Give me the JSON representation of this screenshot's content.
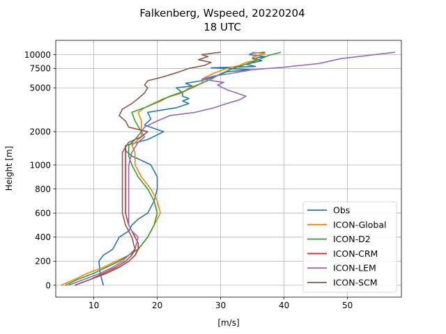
{
  "chart_data": {
    "type": "line",
    "title": "Falkenberg, Wspeed, 20220204",
    "subtitle": "18 UTC",
    "xlabel": "[m/s]",
    "ylabel": "Height [m]",
    "xlim": [
      4.0,
      58.5
    ],
    "x_ticks": [
      10,
      20,
      30,
      40,
      50
    ],
    "y_ticks": [
      0,
      200,
      400,
      600,
      800,
      1000,
      2000,
      5000,
      7500,
      10000
    ],
    "y_scale": "piecewise: linear 0-1000 m, logarithmic 1000-10000 m",
    "grid": true,
    "legend_position": "lower right",
    "series": [
      {
        "name": "Obs",
        "color": "#1f77b4",
        "points": [
          [
            11.5,
            0
          ],
          [
            11,
            100
          ],
          [
            10.8,
            200
          ],
          [
            11.5,
            250
          ],
          [
            13,
            300
          ],
          [
            14,
            400
          ],
          [
            15.5,
            450
          ],
          [
            16,
            500
          ],
          [
            17,
            550
          ],
          [
            18.5,
            600
          ],
          [
            19.5,
            700
          ],
          [
            20,
            800
          ],
          [
            20,
            900
          ],
          [
            19,
            1000
          ],
          [
            17.5,
            1100
          ],
          [
            16,
            1200
          ],
          [
            15,
            1350
          ],
          [
            15,
            1500
          ],
          [
            18.5,
            1700
          ],
          [
            21,
            2000
          ],
          [
            18,
            2300
          ],
          [
            19,
            2600
          ],
          [
            18.5,
            3000
          ],
          [
            23,
            3300
          ],
          [
            25,
            3600
          ],
          [
            24,
            3800
          ],
          [
            25,
            4000
          ],
          [
            24,
            4200
          ],
          [
            24,
            4500
          ],
          [
            23,
            5000
          ],
          [
            25.5,
            5200
          ],
          [
            24.5,
            5500
          ],
          [
            27,
            5800
          ],
          [
            29,
            6300
          ],
          [
            31,
            7000
          ],
          [
            35,
            7300
          ],
          [
            28.5,
            7600
          ],
          [
            35.5,
            7800
          ],
          [
            34,
            8200
          ],
          [
            36.5,
            8800
          ],
          [
            35,
            9200
          ],
          [
            37,
            9600
          ],
          [
            34.5,
            10000
          ],
          [
            35,
            10300
          ],
          [
            37,
            10500
          ]
        ]
      },
      {
        "name": "ICON-Global",
        "color": "#ff7f0e",
        "points": [
          [
            4.8,
            0
          ],
          [
            7,
            50
          ],
          [
            9,
            100
          ],
          [
            11.5,
            150
          ],
          [
            13.5,
            200
          ],
          [
            15.5,
            250
          ],
          [
            17,
            300
          ],
          [
            18.5,
            400
          ],
          [
            19.5,
            500
          ],
          [
            20.5,
            600
          ],
          [
            20,
            700
          ],
          [
            19,
            800
          ],
          [
            17.5,
            900
          ],
          [
            16.5,
            1000
          ],
          [
            16.5,
            1300
          ],
          [
            16,
            1500
          ],
          [
            17.5,
            1800
          ],
          [
            17.5,
            2200
          ],
          [
            17.5,
            2500
          ],
          [
            17,
            3000
          ],
          [
            18,
            3300
          ],
          [
            21,
            4000
          ],
          [
            24,
            4500
          ],
          [
            25,
            5000
          ],
          [
            27,
            5500
          ],
          [
            27.5,
            6200
          ],
          [
            29,
            6800
          ],
          [
            31,
            7500
          ],
          [
            33,
            8000
          ],
          [
            34,
            8500
          ],
          [
            36,
            9000
          ],
          [
            35,
            9500
          ],
          [
            37,
            10200
          ],
          [
            35,
            10500
          ]
        ]
      },
      {
        "name": "ICON-D2",
        "color": "#2ca02c",
        "points": [
          [
            5.5,
            0
          ],
          [
            7.5,
            50
          ],
          [
            10,
            100
          ],
          [
            12,
            150
          ],
          [
            14,
            200
          ],
          [
            15.5,
            250
          ],
          [
            17,
            300
          ],
          [
            18.5,
            400
          ],
          [
            19.5,
            500
          ],
          [
            20,
            600
          ],
          [
            19.5,
            700
          ],
          [
            18.5,
            800
          ],
          [
            17,
            900
          ],
          [
            16,
            1000
          ],
          [
            15.5,
            1200
          ],
          [
            15.5,
            1500
          ],
          [
            16.5,
            1700
          ],
          [
            17.5,
            2000
          ],
          [
            16.5,
            2500
          ],
          [
            16,
            3000
          ],
          [
            18,
            3300
          ],
          [
            20.5,
            3800
          ],
          [
            22,
            4200
          ],
          [
            24,
            4600
          ],
          [
            25.5,
            5000
          ],
          [
            27,
            5500
          ],
          [
            28.5,
            6000
          ],
          [
            30,
            6700
          ],
          [
            32,
            7500
          ],
          [
            34,
            8200
          ],
          [
            36,
            9000
          ],
          [
            37.5,
            9800
          ],
          [
            39.5,
            10500
          ]
        ]
      },
      {
        "name": "ICON-CRM",
        "color": "#d62728",
        "points": [
          [
            7,
            0
          ],
          [
            9.5,
            50
          ],
          [
            12,
            100
          ],
          [
            14,
            150
          ],
          [
            15.5,
            200
          ],
          [
            16.5,
            250
          ],
          [
            17,
            300
          ],
          [
            17,
            350
          ],
          [
            16.5,
            400
          ],
          [
            16,
            450
          ],
          [
            15.5,
            500
          ],
          [
            15,
            600
          ],
          [
            15,
            800
          ],
          [
            15,
            1000
          ],
          [
            15,
            1300
          ],
          [
            15,
            1500
          ]
        ]
      },
      {
        "name": "ICON-LEM",
        "color": "#9467bd",
        "points": [
          [
            6,
            0
          ],
          [
            8.5,
            50
          ],
          [
            11,
            100
          ],
          [
            13,
            150
          ],
          [
            14.5,
            200
          ],
          [
            15.5,
            250
          ],
          [
            16.5,
            300
          ],
          [
            17,
            400
          ],
          [
            16,
            450
          ],
          [
            15.5,
            500
          ],
          [
            15.5,
            700
          ],
          [
            15.5,
            1000
          ],
          [
            16,
            1300
          ],
          [
            17,
            1600
          ],
          [
            18,
            1800
          ],
          [
            17.5,
            2000
          ],
          [
            18,
            2200
          ],
          [
            20,
            2500
          ],
          [
            22,
            2800
          ],
          [
            26,
            3000
          ],
          [
            29,
            3300
          ],
          [
            31,
            3600
          ],
          [
            33,
            3900
          ],
          [
            34,
            4200
          ],
          [
            31,
            4800
          ],
          [
            29.5,
            5300
          ],
          [
            30.5,
            5600
          ],
          [
            27,
            6000
          ],
          [
            29,
            6400
          ],
          [
            32,
            6800
          ],
          [
            35,
            7300
          ],
          [
            40,
            7700
          ],
          [
            45.5,
            8300
          ],
          [
            49,
            9200
          ],
          [
            53,
            9800
          ],
          [
            57.5,
            10500
          ]
        ]
      },
      {
        "name": "ICON-SCM",
        "color": "#8c564b",
        "points": [
          [
            7,
            0
          ],
          [
            9.5,
            50
          ],
          [
            11.5,
            100
          ],
          [
            13.5,
            150
          ],
          [
            15,
            200
          ],
          [
            16,
            250
          ],
          [
            16.5,
            300
          ],
          [
            16,
            400
          ],
          [
            15.5,
            450
          ],
          [
            15,
            500
          ],
          [
            14.5,
            600
          ],
          [
            14.5,
            800
          ],
          [
            14.5,
            1000
          ],
          [
            14.5,
            1300
          ],
          [
            15.5,
            1600
          ],
          [
            17.5,
            1800
          ],
          [
            18.5,
            2000
          ],
          [
            15.5,
            2200
          ],
          [
            15,
            2500
          ],
          [
            14,
            2800
          ],
          [
            14.5,
            3200
          ],
          [
            16,
            3600
          ],
          [
            17,
            4000
          ],
          [
            18,
            4500
          ],
          [
            18.5,
            5000
          ],
          [
            18,
            5300
          ],
          [
            18.5,
            5800
          ],
          [
            21,
            6300
          ],
          [
            23.5,
            7000
          ],
          [
            25,
            7500
          ],
          [
            27.5,
            8000
          ],
          [
            28.5,
            8500
          ],
          [
            26.5,
            9000
          ],
          [
            28,
            9600
          ],
          [
            27,
            10000
          ],
          [
            30,
            10500
          ]
        ]
      }
    ]
  }
}
